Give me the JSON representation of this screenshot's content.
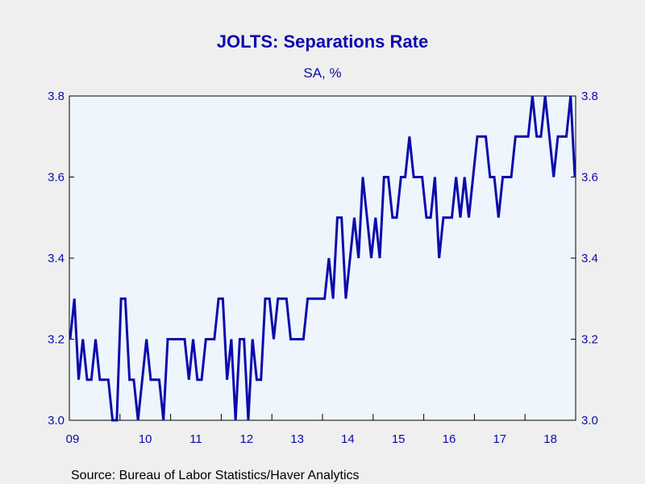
{
  "chart_data": {
    "type": "line",
    "title": "JOLTS: Separations Rate",
    "subtitle": "SA, %",
    "source": "Source:  Bureau of Labor Statistics/Haver Analytics",
    "ylim": [
      3.0,
      3.8
    ],
    "y_ticks": [
      "3.0",
      "3.2",
      "3.4",
      "3.6",
      "3.8"
    ],
    "x_ticks": [
      "09",
      "10",
      "11",
      "12",
      "13",
      "14",
      "15",
      "16",
      "17",
      "18"
    ],
    "x_start": "2009-01",
    "grid": false,
    "colors": {
      "line": "#0b0bab",
      "plot_bg": "#eef5fd",
      "page_bg": "#efefef",
      "text": "#0b0bab"
    },
    "series": [
      {
        "values": [
          3.2,
          3.3,
          3.1,
          3.2,
          3.1,
          3.1,
          3.2,
          3.1,
          3.1,
          3.1,
          3.0,
          3.0,
          3.3,
          3.3,
          3.1,
          3.1,
          3.0,
          3.1,
          3.2,
          3.1,
          3.1,
          3.1,
          3.0,
          3.2,
          3.2,
          3.2,
          3.2,
          3.2,
          3.1,
          3.2,
          3.1,
          3.1,
          3.2,
          3.2,
          3.2,
          3.3,
          3.3,
          3.1,
          3.2,
          3.0,
          3.2,
          3.2,
          3.0,
          3.2,
          3.1,
          3.1,
          3.3,
          3.3,
          3.2,
          3.3,
          3.3,
          3.3,
          3.2,
          3.2,
          3.2,
          3.2,
          3.3,
          3.3,
          3.3,
          3.3,
          3.3,
          3.4,
          3.3,
          3.5,
          3.5,
          3.3,
          3.4,
          3.5,
          3.4,
          3.6,
          3.5,
          3.4,
          3.5,
          3.4,
          3.6,
          3.6,
          3.5,
          3.5,
          3.6,
          3.6,
          3.7,
          3.6,
          3.6,
          3.6,
          3.5,
          3.5,
          3.6,
          3.4,
          3.5,
          3.5,
          3.5,
          3.6,
          3.5,
          3.6,
          3.5,
          3.6,
          3.7,
          3.7,
          3.7,
          3.6,
          3.6,
          3.5,
          3.6,
          3.6,
          3.6,
          3.7,
          3.7,
          3.7,
          3.7,
          3.8,
          3.7,
          3.7,
          3.8,
          3.7,
          3.6,
          3.7,
          3.7,
          3.7,
          3.8,
          3.6
        ]
      }
    ]
  }
}
